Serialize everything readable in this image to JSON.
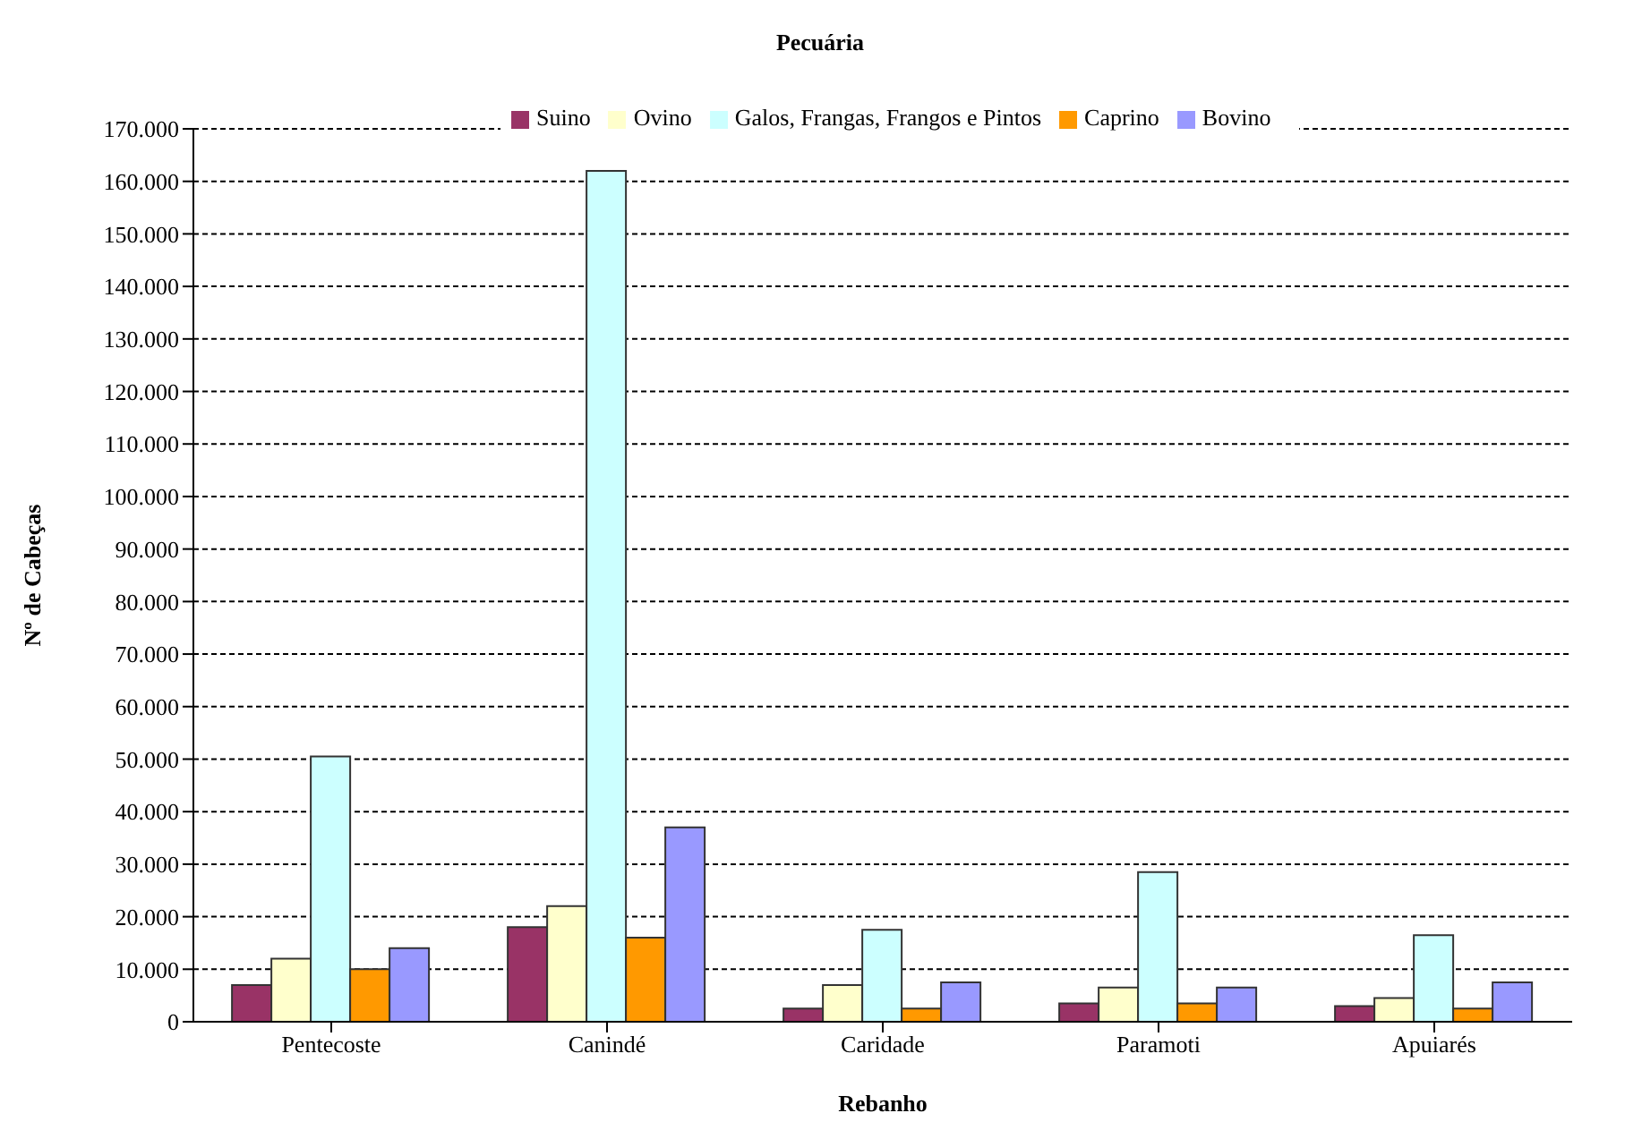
{
  "chart_data": {
    "type": "bar",
    "title": "Pecuária",
    "xlabel": "Rebanho",
    "ylabel": "Nº de Cabeças",
    "categories": [
      "Pentecoste",
      "Canindé",
      "Caridade",
      "Paramoti",
      "Apuiarés"
    ],
    "series": [
      {
        "name": "Suino",
        "color": "#993366",
        "values": [
          7000,
          18000,
          2500,
          3500,
          3000
        ]
      },
      {
        "name": "Ovino",
        "color": "#ffffcc",
        "values": [
          12000,
          22000,
          7000,
          6500,
          4500
        ]
      },
      {
        "name": "Galos, Frangas, Frangos e Pintos",
        "color": "#ccffff",
        "values": [
          50500,
          162000,
          17500,
          28500,
          16500
        ]
      },
      {
        "name": "Caprino",
        "color": "#ff9900",
        "values": [
          10000,
          16000,
          2500,
          3500,
          2500
        ]
      },
      {
        "name": "Bovino",
        "color": "#9999ff",
        "values": [
          14000,
          37000,
          7500,
          6500,
          7500
        ]
      }
    ],
    "ylim": [
      0,
      170000
    ],
    "yticks": [
      {
        "value": 0,
        "label": "0"
      },
      {
        "value": 10000,
        "label": "10.000"
      },
      {
        "value": 20000,
        "label": "20.000"
      },
      {
        "value": 30000,
        "label": "30.000"
      },
      {
        "value": 40000,
        "label": "40.000"
      },
      {
        "value": 50000,
        "label": "50.000"
      },
      {
        "value": 60000,
        "label": "60.000"
      },
      {
        "value": 70000,
        "label": "70.000"
      },
      {
        "value": 80000,
        "label": "80.000"
      },
      {
        "value": 90000,
        "label": "90.000"
      },
      {
        "value": 100000,
        "label": "100.000"
      },
      {
        "value": 110000,
        "label": "110.000"
      },
      {
        "value": 120000,
        "label": "120.000"
      },
      {
        "value": 130000,
        "label": "130.000"
      },
      {
        "value": 140000,
        "label": "140.000"
      },
      {
        "value": 150000,
        "label": "150.000"
      },
      {
        "value": 160000,
        "label": "160.000"
      },
      {
        "value": 170000,
        "label": "170.000"
      }
    ],
    "grid": "y",
    "legend": "top"
  }
}
